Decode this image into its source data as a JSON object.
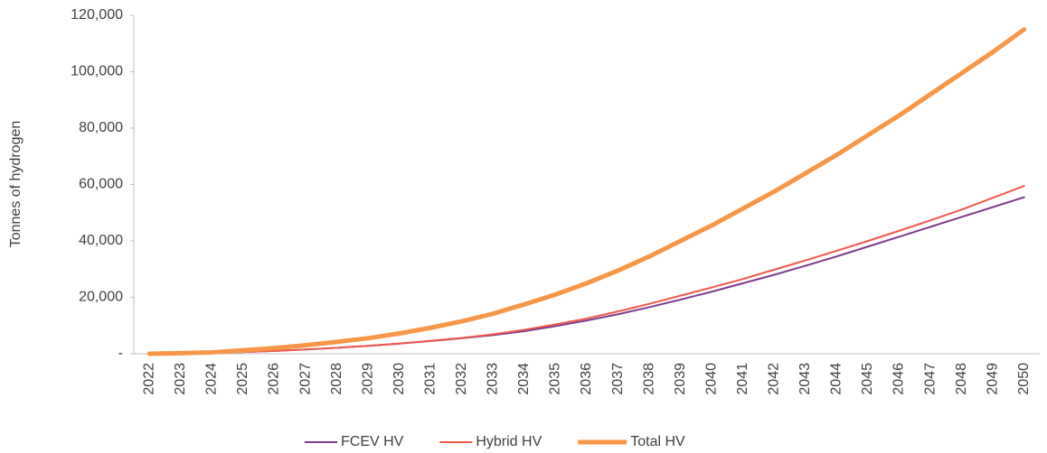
{
  "chart_data": {
    "type": "line",
    "y_label": "Tonnes of hydrogen",
    "categories": [
      "2022",
      "2023",
      "2024",
      "2025",
      "2026",
      "2027",
      "2028",
      "2029",
      "2030",
      "2031",
      "2032",
      "2033",
      "2034",
      "2035",
      "2036",
      "2037",
      "2038",
      "2039",
      "2040",
      "2041",
      "2042",
      "2043",
      "2044",
      "2045",
      "2046",
      "2047",
      "2048",
      "2049",
      "2050"
    ],
    "series": [
      {
        "name": "FCEV HV",
        "color": "#7d3c8c",
        "width": 2,
        "values": [
          0,
          100,
          250,
          600,
          1000,
          1500,
          2100,
          2800,
          3600,
          4500,
          5500,
          6600,
          8000,
          9800,
          11800,
          14000,
          16500,
          19200,
          22000,
          25000,
          28000,
          31200,
          34500,
          38000,
          41500,
          45000,
          48500,
          52000,
          55500
        ]
      },
      {
        "name": "Hybrid HV",
        "color": "#f0584a",
        "width": 2,
        "values": [
          0,
          100,
          250,
          600,
          1000,
          1500,
          2100,
          2800,
          3600,
          4600,
          5600,
          6900,
          8500,
          10400,
          12500,
          15000,
          17700,
          20600,
          23500,
          26500,
          29800,
          33100,
          36500,
          40000,
          43600,
          47300,
          51100,
          55300,
          59500
        ]
      },
      {
        "name": "Total HV",
        "color": "#f79646",
        "width": 5,
        "values": [
          0,
          200,
          500,
          1200,
          2000,
          3000,
          4200,
          5500,
          7200,
          9200,
          11500,
          14200,
          17500,
          21000,
          25000,
          29500,
          34500,
          40000,
          45500,
          51500,
          57500,
          64000,
          70500,
          77500,
          84500,
          92000,
          99500,
          107000,
          115000
        ]
      }
    ],
    "ylim": [
      0,
      120000
    ],
    "yticks": [
      {
        "value": 0,
        "label": "-"
      },
      {
        "value": 20000,
        "label": "20,000"
      },
      {
        "value": 40000,
        "label": "40,000"
      },
      {
        "value": 60000,
        "label": "60,000"
      },
      {
        "value": 80000,
        "label": "80,000"
      },
      {
        "value": 100000,
        "label": "100,000"
      },
      {
        "value": 120000,
        "label": "120,000"
      }
    ],
    "legend": "bottom"
  }
}
